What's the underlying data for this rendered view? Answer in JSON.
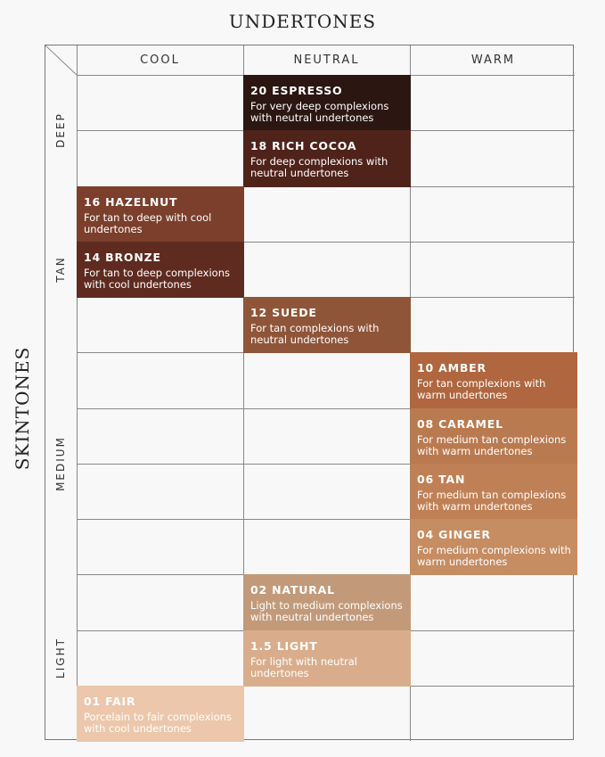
{
  "titles": {
    "top": "UNDERTONES",
    "left": "SKINTONES"
  },
  "columns": [
    "COOL",
    "NEUTRAL",
    "WARM"
  ],
  "row_groups": [
    {
      "label": "DEEP",
      "rows": [
        0,
        1
      ]
    },
    {
      "label": "TAN",
      "rows": [
        2,
        4
      ]
    },
    {
      "label": "MEDIUM",
      "rows": [
        5,
        8
      ]
    },
    {
      "label": "LIGHT",
      "rows": [
        9,
        11
      ]
    }
  ],
  "row_count": 12,
  "shades": [
    {
      "name": "20 ESPRESSO",
      "desc": "For very deep complexions with neutral undertones",
      "undertone": "NEUTRAL",
      "row": 0,
      "color": "#2b1612"
    },
    {
      "name": "18 RICH COCOA",
      "desc": "For deep complexions with neutral undertones",
      "undertone": "NEUTRAL",
      "row": 1,
      "color": "#4f231a"
    },
    {
      "name": "16 HAZELNUT",
      "desc": "For tan to deep with cool undertones",
      "undertone": "COOL",
      "row": 2,
      "color": "#7b3f2c"
    },
    {
      "name": "14 BRONZE",
      "desc": "For tan to deep complexions with cool undertones",
      "undertone": "COOL",
      "row": 3,
      "color": "#5f2b20"
    },
    {
      "name": "12 SUEDE",
      "desc": "For tan complexions with neutral undertones",
      "undertone": "NEUTRAL",
      "row": 4,
      "color": "#8f5538"
    },
    {
      "name": "10 AMBER",
      "desc": "For tan complexions with warm undertones",
      "undertone": "WARM",
      "row": 5,
      "color": "#b0663e"
    },
    {
      "name": "08 CARAMEL",
      "desc": "For medium tan complexions with warm undertones",
      "undertone": "WARM",
      "row": 6,
      "color": "#ba7a50"
    },
    {
      "name": "06 TAN",
      "desc": "For medium tan complexions with warm undertones",
      "undertone": "WARM",
      "row": 7,
      "color": "#c08055"
    },
    {
      "name": "04 GINGER",
      "desc": "For medium complexions with warm undertones",
      "undertone": "WARM",
      "row": 8,
      "color": "#c68c62"
    },
    {
      "name": "02 NATURAL",
      "desc": "Light to medium complexions with neutral undertones",
      "undertone": "NEUTRAL",
      "row": 9,
      "color": "#c29a7a"
    },
    {
      "name": "1.5 LIGHT",
      "desc": "For light with neutral undertones",
      "undertone": "NEUTRAL",
      "row": 10,
      "color": "#d9ad8b"
    },
    {
      "name": "01 FAIR",
      "desc": "Porcelain to fair complexions with cool undertones",
      "undertone": "COOL",
      "row": 11,
      "color": "#ecc7ab"
    }
  ]
}
